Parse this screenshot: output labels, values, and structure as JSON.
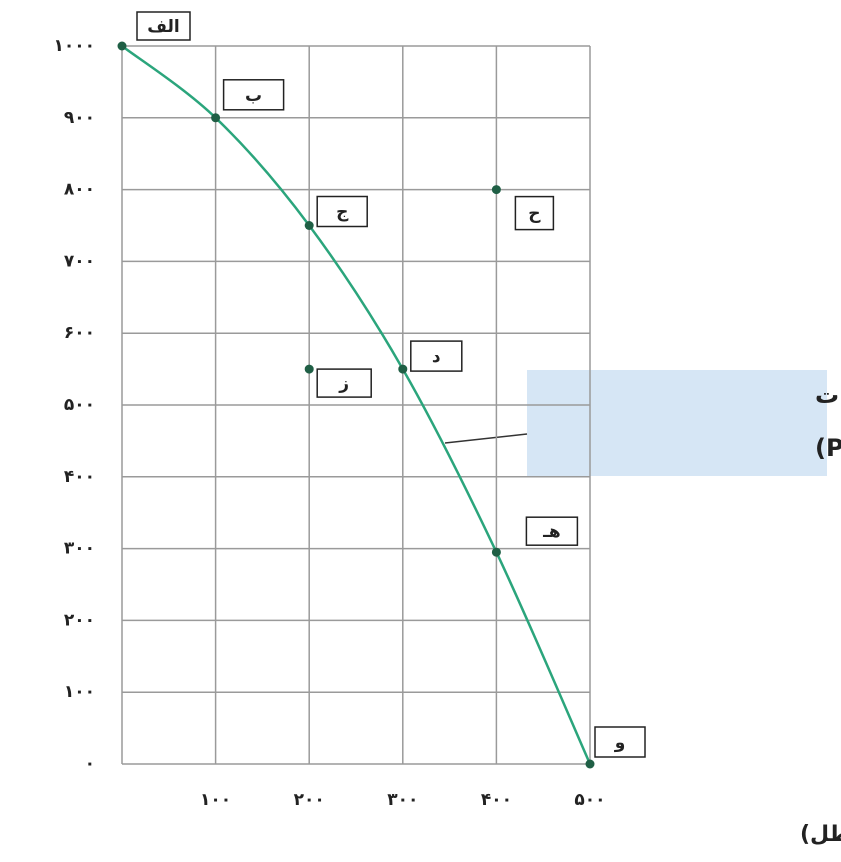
{
  "chart_data": {
    "type": "line",
    "x_label": "مقدار ماست (سطل)",
    "annotation": [
      "منحنی‌مرز امکانات",
      "تولید (PPF)"
    ],
    "x": [
      0,
      100,
      200,
      300,
      400,
      500
    ],
    "values": [
      1000,
      900,
      750,
      550,
      295,
      0
    ],
    "point_labels": [
      "الف",
      "ب",
      "ج",
      "د",
      "هـ",
      "و"
    ],
    "color": "#2ba57c",
    "other_points": {
      "x": [
        200,
        400
      ],
      "values": [
        550,
        800
      ],
      "labels": [
        "ز",
        "ح"
      ]
    },
    "xlim": [
      0,
      500
    ],
    "ylim": [
      0,
      1000
    ],
    "xticks": [
      {
        "value": 100,
        "label": "۱۰۰"
      },
      {
        "value": 200,
        "label": "۲۰۰"
      },
      {
        "value": 300,
        "label": "۳۰۰"
      },
      {
        "value": 400,
        "label": "۴۰۰"
      },
      {
        "value": 500,
        "label": "۵۰۰"
      }
    ],
    "yticks": [
      {
        "value": 0,
        "label": "۰"
      },
      {
        "value": 100,
        "label": "۱۰۰"
      },
      {
        "value": 200,
        "label": "۲۰۰"
      },
      {
        "value": 300,
        "label": "۳۰۰"
      },
      {
        "value": 400,
        "label": "۴۰۰"
      },
      {
        "value": 500,
        "label": "۵۰۰"
      },
      {
        "value": 600,
        "label": "۶۰۰"
      },
      {
        "value": 700,
        "label": "۷۰۰"
      },
      {
        "value": 800,
        "label": "۸۰۰"
      },
      {
        "value": 900,
        "label": "۹۰۰"
      },
      {
        "value": 1000,
        "label": "۱۰۰۰"
      }
    ],
    "grid": true
  }
}
